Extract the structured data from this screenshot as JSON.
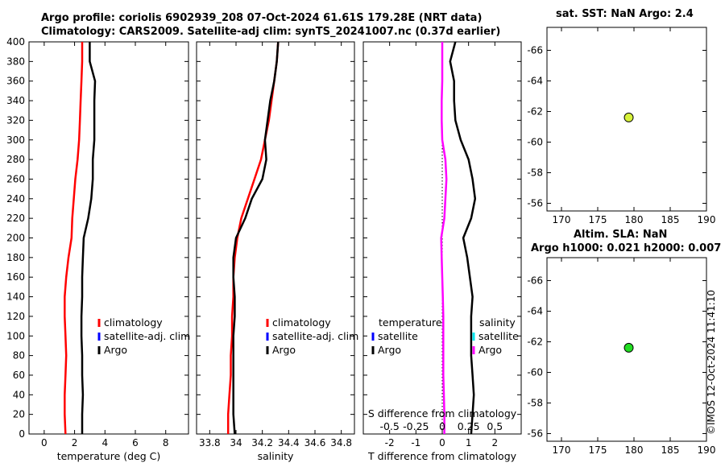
{
  "header": {
    "line1": "Argo profile: coriolis 6902939_208 07-Oct-2024 61.61S 179.28E (NRT data)",
    "line2": "Climatology: CARS2009. Satellite-adj clim: synTS_20241007.nc (0.37d earlier)"
  },
  "watermark": "©IMOS 12-Oct-2024 11:41:10",
  "colors": {
    "argo": "#000000",
    "climatology": "#ff0000",
    "satellite": "#0000ff",
    "magenta": "#ff00ff",
    "cyan": "#00e5ee",
    "marker_sst": "#d7f23a",
    "marker_sla": "#22dd22"
  },
  "chart_data": [
    {
      "id": "temperature",
      "type": "line",
      "xlabel": "temperature (deg C)",
      "ylabel": "depth",
      "xlim": [
        -1,
        9.5
      ],
      "ylim": [
        400,
        0
      ],
      "xticks": [
        0,
        2,
        4,
        6,
        8
      ],
      "xtick_labels": [
        "0",
        "2",
        "4",
        "6",
        "8"
      ],
      "yticks": [
        0,
        20,
        40,
        60,
        80,
        100,
        120,
        140,
        160,
        180,
        200,
        220,
        240,
        260,
        280,
        300,
        320,
        340,
        360,
        380,
        400
      ],
      "ytick_labels": [
        "0",
        "20",
        "40",
        "60",
        "80",
        "100",
        "120",
        "140",
        "160",
        "180",
        "200",
        "220",
        "240",
        "260",
        "280",
        "300",
        "320",
        "340",
        "360",
        "380",
        "400"
      ],
      "legend": [
        "climatology",
        "satellite-adj. clim",
        "Argo"
      ],
      "series": [
        {
          "name": "climatology",
          "color": "climatology",
          "x": [
            1.4,
            1.35,
            1.35,
            1.4,
            1.45,
            1.4,
            1.35,
            1.35,
            1.45,
            1.6,
            1.8,
            1.85,
            1.95,
            2.05,
            2.2,
            2.3,
            2.35,
            2.4,
            2.45,
            2.5,
            2.5
          ],
          "y": [
            0,
            20,
            40,
            60,
            80,
            100,
            120,
            140,
            160,
            180,
            200,
            220,
            240,
            260,
            280,
            300,
            320,
            340,
            360,
            380,
            400
          ]
        },
        {
          "name": "Argo",
          "color": "argo",
          "x": [
            2.5,
            2.5,
            2.55,
            2.5,
            2.5,
            2.45,
            2.45,
            2.5,
            2.5,
            2.55,
            2.6,
            2.9,
            3.1,
            3.2,
            3.2,
            3.3,
            3.3,
            3.3,
            3.35,
            3.0,
            3.0
          ],
          "y": [
            0,
            20,
            40,
            60,
            80,
            100,
            120,
            140,
            160,
            180,
            200,
            220,
            240,
            260,
            280,
            300,
            320,
            340,
            360,
            380,
            400
          ]
        }
      ]
    },
    {
      "id": "salinity",
      "type": "line",
      "xlabel": "salinity",
      "xlim": [
        33.7,
        34.9
      ],
      "ylim": [
        400,
        0
      ],
      "xticks": [
        33.8,
        34.0,
        34.2,
        34.4,
        34.6,
        34.8
      ],
      "xtick_labels": [
        "33.8",
        "34",
        "34.2",
        "34.4",
        "34.6",
        "34.8"
      ],
      "legend": [
        "climatology",
        "satellite-adj. clim",
        "Argo"
      ],
      "series": [
        {
          "name": "climatology",
          "color": "climatology",
          "x": [
            33.94,
            33.94,
            33.95,
            33.96,
            33.96,
            33.97,
            33.97,
            33.98,
            33.98,
            33.99,
            34.01,
            34.04,
            34.09,
            34.14,
            34.19,
            34.22,
            34.25,
            34.27,
            34.29,
            34.31,
            34.32
          ],
          "y": [
            0,
            20,
            40,
            60,
            80,
            100,
            120,
            140,
            160,
            180,
            200,
            220,
            240,
            260,
            280,
            300,
            320,
            340,
            360,
            380,
            400
          ]
        },
        {
          "name": "Argo",
          "color": "argo",
          "x": [
            33.99,
            33.98,
            33.98,
            33.98,
            33.98,
            33.98,
            33.99,
            33.99,
            33.98,
            33.98,
            34.0,
            34.07,
            34.12,
            34.2,
            34.23,
            34.22,
            34.24,
            34.26,
            34.29,
            34.31,
            34.32
          ],
          "y": [
            0,
            20,
            40,
            60,
            80,
            100,
            120,
            140,
            160,
            180,
            200,
            220,
            240,
            260,
            280,
            300,
            320,
            340,
            360,
            380,
            400
          ]
        }
      ]
    },
    {
      "id": "difference",
      "type": "line",
      "xlabel": "T difference from climatology",
      "top_label": "S difference from climatology",
      "xlim": [
        -3,
        3
      ],
      "ylim": [
        400,
        0
      ],
      "xticks": [
        -2,
        -1,
        0,
        1,
        2
      ],
      "xtick_labels": [
        "-2",
        "-1",
        "0",
        "1",
        "2"
      ],
      "top_ticks": [
        -0.5,
        -0.25,
        0,
        0.25,
        0.5
      ],
      "top_tick_labels": [
        "-0.5",
        "-0.25",
        "0",
        "0.25",
        "0.5"
      ],
      "legend_left_title": "temperature",
      "legend_right_title": "salinity",
      "legend_left": [
        "satellite",
        "Argo"
      ],
      "legend_right": [
        "satellite",
        "Argo"
      ],
      "series": [
        {
          "name": "T difference Argo",
          "color": "argo",
          "x": [
            1.1,
            1.15,
            1.2,
            1.15,
            1.1,
            1.1,
            1.1,
            1.15,
            1.05,
            0.95,
            0.8,
            1.1,
            1.25,
            1.15,
            1.0,
            0.7,
            0.5,
            0.45,
            0.45,
            0.3,
            0.5
          ],
          "y": [
            0,
            20,
            40,
            60,
            80,
            100,
            120,
            140,
            160,
            180,
            200,
            220,
            240,
            260,
            280,
            300,
            320,
            340,
            360,
            380,
            400
          ]
        },
        {
          "name": "S difference Argo",
          "color": "magenta",
          "x": [
            0.02,
            0.02,
            0.015,
            0.01,
            0.01,
            0.01,
            0.01,
            0.005,
            0.0,
            -0.005,
            -0.01,
            0.02,
            0.03,
            0.04,
            0.03,
            0.0,
            -0.005,
            -0.005,
            0.0,
            0.0,
            0.0
          ],
          "y": [
            0,
            20,
            40,
            60,
            80,
            100,
            120,
            140,
            160,
            180,
            200,
            220,
            240,
            260,
            280,
            300,
            320,
            340,
            360,
            380,
            400
          ]
        }
      ]
    },
    {
      "id": "sst_map",
      "type": "scatter",
      "title": "sat. SST: NaN Argo: 2.4",
      "xlim": [
        168,
        190
      ],
      "ylim": [
        -67.5,
        -55.5
      ],
      "xticks": [
        170,
        175,
        180,
        185,
        190
      ],
      "xtick_labels": [
        "170",
        "175",
        "180",
        "185",
        "190"
      ],
      "yticks": [
        -56,
        -58,
        -60,
        -62,
        -64,
        -66
      ],
      "ytick_labels": [
        "-56",
        "-58",
        "-60",
        "-62",
        "-64",
        "-66"
      ],
      "points": [
        {
          "x": 179.28,
          "y": -61.61,
          "color": "marker_sst"
        }
      ]
    },
    {
      "id": "sla_map",
      "type": "scatter",
      "title": "Altim. SLA: NaN",
      "subtitle": "Argo h1000: 0.021 h2000: 0.007",
      "xlim": [
        168,
        190
      ],
      "ylim": [
        -67.5,
        -55.5
      ],
      "xticks": [
        170,
        175,
        180,
        185,
        190
      ],
      "xtick_labels": [
        "170",
        "175",
        "180",
        "185",
        "190"
      ],
      "yticks": [
        -56,
        -58,
        -60,
        -62,
        -64,
        -66
      ],
      "ytick_labels": [
        "-56",
        "-58",
        "-60",
        "-62",
        "-64",
        "-66"
      ],
      "points": [
        {
          "x": 179.28,
          "y": -61.61,
          "color": "marker_sla"
        }
      ]
    }
  ]
}
